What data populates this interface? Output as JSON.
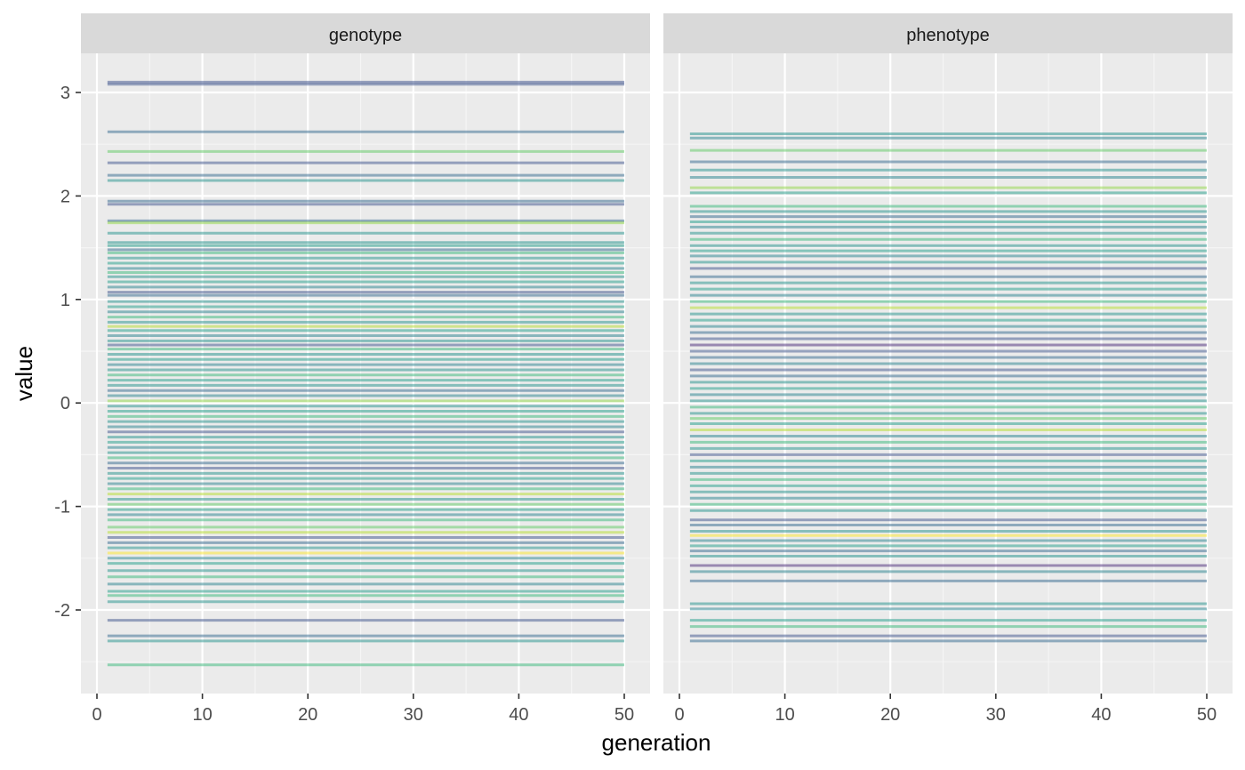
{
  "chart_data": {
    "type": "line",
    "xlabel": "generation",
    "ylabel": "value",
    "xlim": [
      1,
      50
    ],
    "ylim": [
      -2.5,
      3
    ],
    "x_ticks": [
      "0",
      "10",
      "20",
      "30",
      "40",
      "50"
    ],
    "y_ticks": [
      "-2",
      "-1",
      "0",
      "1",
      "2",
      "3"
    ],
    "grid": true,
    "legend": "none",
    "note": "Each series is a constant horizontal line from generation 1 to 50; colors from viridis-like palette with transparency.",
    "panels": [
      {
        "title": "genotype",
        "series": [
          {
            "y": 3.1,
            "color": "#3b528b"
          },
          {
            "y": 3.08,
            "color": "#3b528b"
          },
          {
            "y": 2.62,
            "color": "#31688e"
          },
          {
            "y": 2.43,
            "color": "#5ec962"
          },
          {
            "y": 2.32,
            "color": "#3b528b"
          },
          {
            "y": 2.2,
            "color": "#31688e"
          },
          {
            "y": 2.15,
            "color": "#21918c"
          },
          {
            "y": 1.95,
            "color": "#31688e"
          },
          {
            "y": 1.92,
            "color": "#3b528b"
          },
          {
            "y": 1.76,
            "color": "#31688e"
          },
          {
            "y": 1.74,
            "color": "#90d743"
          },
          {
            "y": 1.64,
            "color": "#21918c"
          },
          {
            "y": 1.55,
            "color": "#21918c"
          },
          {
            "y": 1.52,
            "color": "#1f9e89"
          },
          {
            "y": 1.48,
            "color": "#31688e"
          },
          {
            "y": 1.45,
            "color": "#35b779"
          },
          {
            "y": 1.4,
            "color": "#21918c"
          },
          {
            "y": 1.35,
            "color": "#1f9e89"
          },
          {
            "y": 1.3,
            "color": "#26828e"
          },
          {
            "y": 1.26,
            "color": "#35b779"
          },
          {
            "y": 1.22,
            "color": "#21918c"
          },
          {
            "y": 1.17,
            "color": "#1f9e89"
          },
          {
            "y": 1.12,
            "color": "#26828e"
          },
          {
            "y": 1.07,
            "color": "#3b528b"
          },
          {
            "y": 1.04,
            "color": "#31688e"
          },
          {
            "y": 0.98,
            "color": "#21918c"
          },
          {
            "y": 0.93,
            "color": "#1f9e89"
          },
          {
            "y": 0.88,
            "color": "#26828e"
          },
          {
            "y": 0.83,
            "color": "#35b779"
          },
          {
            "y": 0.78,
            "color": "#21918c"
          },
          {
            "y": 0.74,
            "color": "#b5de2b"
          },
          {
            "y": 0.7,
            "color": "#1f9e89"
          },
          {
            "y": 0.65,
            "color": "#26828e"
          },
          {
            "y": 0.6,
            "color": "#21918c"
          },
          {
            "y": 0.56,
            "color": "#3b528b"
          },
          {
            "y": 0.52,
            "color": "#35b779"
          },
          {
            "y": 0.47,
            "color": "#21918c"
          },
          {
            "y": 0.42,
            "color": "#1f9e89"
          },
          {
            "y": 0.37,
            "color": "#26828e"
          },
          {
            "y": 0.32,
            "color": "#21918c"
          },
          {
            "y": 0.27,
            "color": "#35b779"
          },
          {
            "y": 0.22,
            "color": "#1f9e89"
          },
          {
            "y": 0.17,
            "color": "#21918c"
          },
          {
            "y": 0.12,
            "color": "#31688e"
          },
          {
            "y": 0.07,
            "color": "#26828e"
          },
          {
            "y": 0.02,
            "color": "#90d743"
          },
          {
            "y": -0.03,
            "color": "#21918c"
          },
          {
            "y": -0.08,
            "color": "#1f9e89"
          },
          {
            "y": -0.13,
            "color": "#35b779"
          },
          {
            "y": -0.18,
            "color": "#21918c"
          },
          {
            "y": -0.23,
            "color": "#26828e"
          },
          {
            "y": -0.28,
            "color": "#3b528b"
          },
          {
            "y": -0.33,
            "color": "#21918c"
          },
          {
            "y": -0.38,
            "color": "#1f9e89"
          },
          {
            "y": -0.43,
            "color": "#26828e"
          },
          {
            "y": -0.48,
            "color": "#21918c"
          },
          {
            "y": -0.53,
            "color": "#35b779"
          },
          {
            "y": -0.58,
            "color": "#31688e"
          },
          {
            "y": -0.63,
            "color": "#3b528b"
          },
          {
            "y": -0.68,
            "color": "#21918c"
          },
          {
            "y": -0.73,
            "color": "#1f9e89"
          },
          {
            "y": -0.78,
            "color": "#26828e"
          },
          {
            "y": -0.83,
            "color": "#35b779"
          },
          {
            "y": -0.88,
            "color": "#b5de2b"
          },
          {
            "y": -0.93,
            "color": "#21918c"
          },
          {
            "y": -0.98,
            "color": "#5ec962"
          },
          {
            "y": -1.03,
            "color": "#1f9e89"
          },
          {
            "y": -1.08,
            "color": "#26828e"
          },
          {
            "y": -1.13,
            "color": "#35b779"
          },
          {
            "y": -1.2,
            "color": "#5ec962"
          },
          {
            "y": -1.25,
            "color": "#b5de2b"
          },
          {
            "y": -1.3,
            "color": "#3b528b"
          },
          {
            "y": -1.35,
            "color": "#31688e"
          },
          {
            "y": -1.4,
            "color": "#21918c"
          },
          {
            "y": -1.45,
            "color": "#fde725"
          },
          {
            "y": -1.5,
            "color": "#26828e"
          },
          {
            "y": -1.55,
            "color": "#1f9e89"
          },
          {
            "y": -1.62,
            "color": "#21918c"
          },
          {
            "y": -1.68,
            "color": "#35b779"
          },
          {
            "y": -1.75,
            "color": "#26828e"
          },
          {
            "y": -1.82,
            "color": "#1f9e89"
          },
          {
            "y": -1.86,
            "color": "#35b779"
          },
          {
            "y": -1.92,
            "color": "#21918c"
          },
          {
            "y": -2.1,
            "color": "#3b528b"
          },
          {
            "y": -2.25,
            "color": "#31688e"
          },
          {
            "y": -2.3,
            "color": "#21918c"
          },
          {
            "y": -2.53,
            "color": "#35b779"
          }
        ]
      },
      {
        "title": "phenotype",
        "series": [
          {
            "y": 2.6,
            "color": "#21918c"
          },
          {
            "y": 2.56,
            "color": "#26828e"
          },
          {
            "y": 2.44,
            "color": "#5ec962"
          },
          {
            "y": 2.33,
            "color": "#31688e"
          },
          {
            "y": 2.25,
            "color": "#21918c"
          },
          {
            "y": 2.18,
            "color": "#26828e"
          },
          {
            "y": 2.08,
            "color": "#90d743"
          },
          {
            "y": 2.03,
            "color": "#1f9e89"
          },
          {
            "y": 1.9,
            "color": "#35b779"
          },
          {
            "y": 1.85,
            "color": "#21918c"
          },
          {
            "y": 1.8,
            "color": "#31688e"
          },
          {
            "y": 1.75,
            "color": "#1f9e89"
          },
          {
            "y": 1.7,
            "color": "#26828e"
          },
          {
            "y": 1.64,
            "color": "#21918c"
          },
          {
            "y": 1.58,
            "color": "#35b779"
          },
          {
            "y": 1.52,
            "color": "#21918c"
          },
          {
            "y": 1.47,
            "color": "#1f9e89"
          },
          {
            "y": 1.42,
            "color": "#26828e"
          },
          {
            "y": 1.36,
            "color": "#21918c"
          },
          {
            "y": 1.3,
            "color": "#3b528b"
          },
          {
            "y": 1.22,
            "color": "#31688e"
          },
          {
            "y": 1.16,
            "color": "#21918c"
          },
          {
            "y": 1.1,
            "color": "#1f9e89"
          },
          {
            "y": 1.04,
            "color": "#26828e"
          },
          {
            "y": 0.98,
            "color": "#35b779"
          },
          {
            "y": 0.92,
            "color": "#b5de2b"
          },
          {
            "y": 0.86,
            "color": "#21918c"
          },
          {
            "y": 0.8,
            "color": "#1f9e89"
          },
          {
            "y": 0.74,
            "color": "#26828e"
          },
          {
            "y": 0.68,
            "color": "#31688e"
          },
          {
            "y": 0.62,
            "color": "#3b528b"
          },
          {
            "y": 0.56,
            "color": "#482878"
          },
          {
            "y": 0.5,
            "color": "#3b528b"
          },
          {
            "y": 0.44,
            "color": "#31688e"
          },
          {
            "y": 0.38,
            "color": "#26828e"
          },
          {
            "y": 0.32,
            "color": "#3b528b"
          },
          {
            "y": 0.26,
            "color": "#31688e"
          },
          {
            "y": 0.2,
            "color": "#21918c"
          },
          {
            "y": 0.14,
            "color": "#1f9e89"
          },
          {
            "y": 0.08,
            "color": "#26828e"
          },
          {
            "y": 0.02,
            "color": "#21918c"
          },
          {
            "y": -0.04,
            "color": "#35b779"
          },
          {
            "y": -0.1,
            "color": "#21918c"
          },
          {
            "y": -0.15,
            "color": "#5ec962"
          },
          {
            "y": -0.2,
            "color": "#1f9e89"
          },
          {
            "y": -0.26,
            "color": "#b5de2b"
          },
          {
            "y": -0.32,
            "color": "#26828e"
          },
          {
            "y": -0.38,
            "color": "#35b779"
          },
          {
            "y": -0.44,
            "color": "#21918c"
          },
          {
            "y": -0.5,
            "color": "#3b528b"
          },
          {
            "y": -0.56,
            "color": "#1f9e89"
          },
          {
            "y": -0.62,
            "color": "#26828e"
          },
          {
            "y": -0.68,
            "color": "#21918c"
          },
          {
            "y": -0.74,
            "color": "#35b779"
          },
          {
            "y": -0.8,
            "color": "#1f9e89"
          },
          {
            "y": -0.86,
            "color": "#21918c"
          },
          {
            "y": -0.92,
            "color": "#26828e"
          },
          {
            "y": -0.98,
            "color": "#35b779"
          },
          {
            "y": -1.04,
            "color": "#21918c"
          },
          {
            "y": -1.13,
            "color": "#3b528b"
          },
          {
            "y": -1.18,
            "color": "#31688e"
          },
          {
            "y": -1.24,
            "color": "#21918c"
          },
          {
            "y": -1.28,
            "color": "#fde725"
          },
          {
            "y": -1.33,
            "color": "#26828e"
          },
          {
            "y": -1.38,
            "color": "#1f9e89"
          },
          {
            "y": -1.43,
            "color": "#31688e"
          },
          {
            "y": -1.48,
            "color": "#21918c"
          },
          {
            "y": -1.57,
            "color": "#482878"
          },
          {
            "y": -1.63,
            "color": "#26828e"
          },
          {
            "y": -1.72,
            "color": "#31688e"
          },
          {
            "y": -1.94,
            "color": "#21918c"
          },
          {
            "y": -1.99,
            "color": "#26828e"
          },
          {
            "y": -2.1,
            "color": "#1f9e89"
          },
          {
            "y": -2.16,
            "color": "#35b779"
          },
          {
            "y": -2.25,
            "color": "#3b528b"
          },
          {
            "y": -2.3,
            "color": "#31688e"
          }
        ]
      }
    ]
  }
}
